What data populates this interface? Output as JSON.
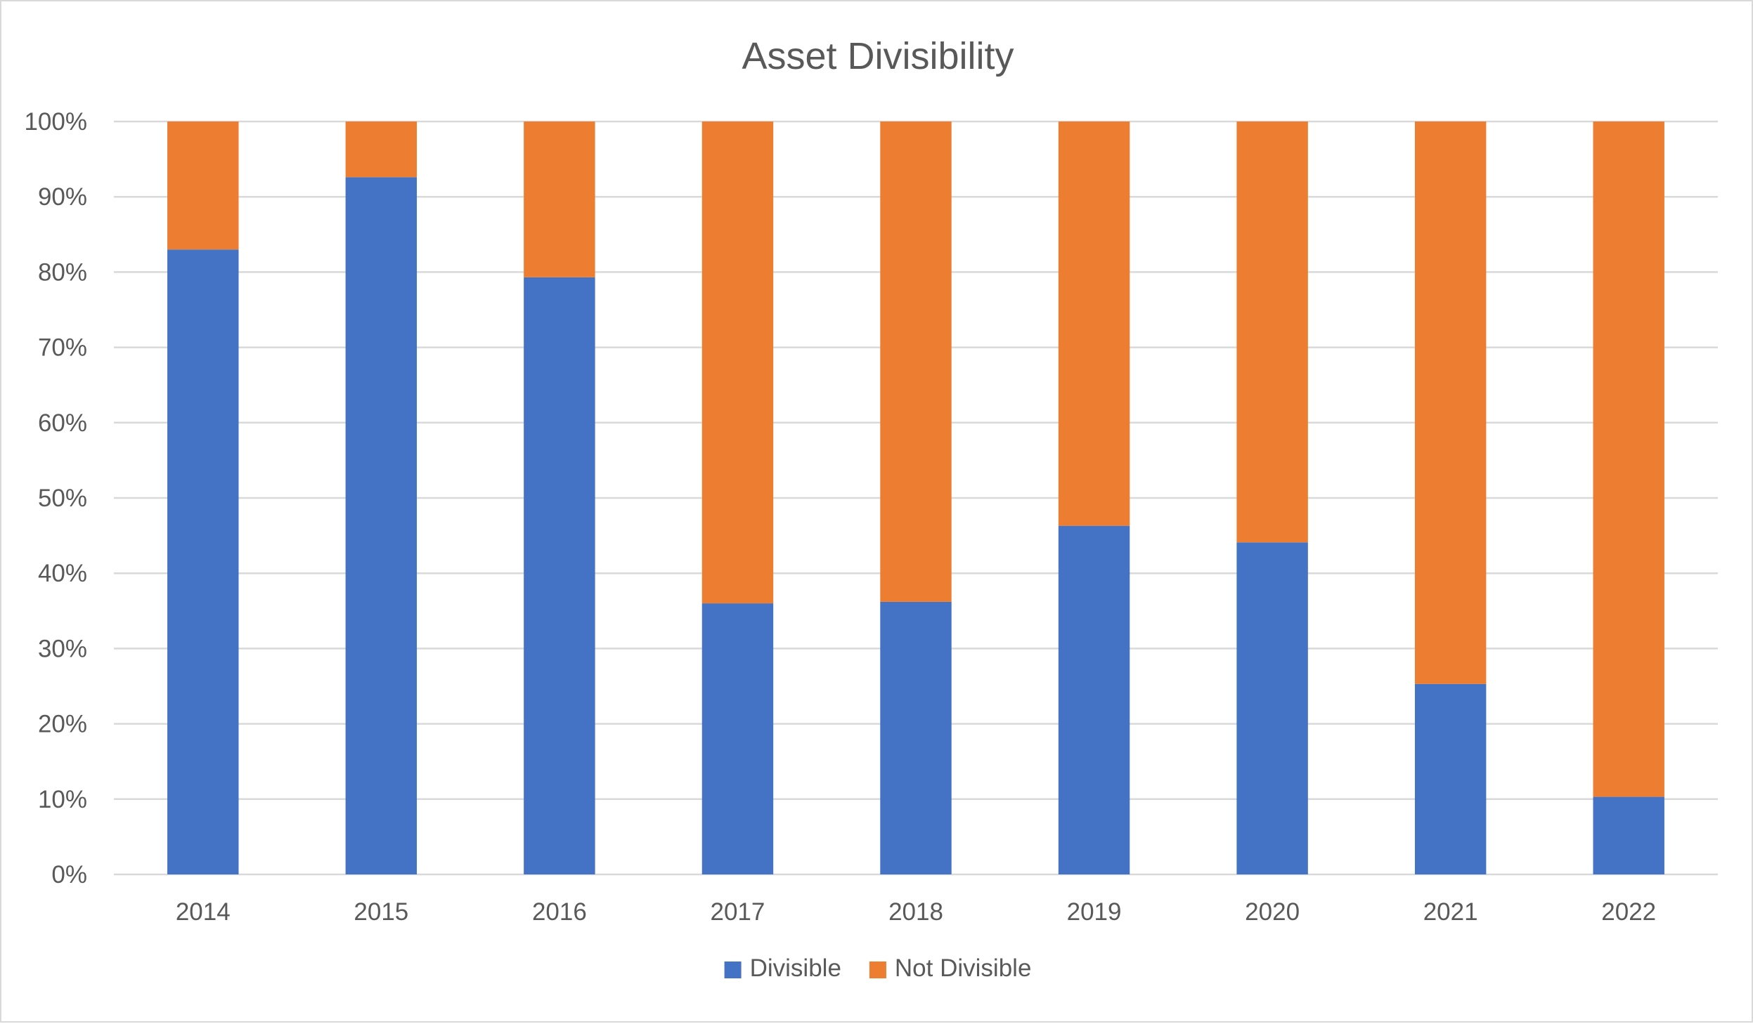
{
  "chart_data": {
    "type": "bar",
    "stacked": true,
    "percent_stacked": true,
    "title": "Asset Divisibility",
    "xlabel": "",
    "ylabel": "",
    "categories": [
      "2014",
      "2015",
      "2016",
      "2017",
      "2018",
      "2019",
      "2020",
      "2021",
      "2022"
    ],
    "series": [
      {
        "name": "Divisible",
        "color": "#4472c4",
        "values": [
          83,
          92.6,
          79.3,
          36,
          36.2,
          46.3,
          44.1,
          25.3,
          10.3
        ]
      },
      {
        "name": "Not Divisible",
        "color": "#ed7d31",
        "values": [
          17,
          7.4,
          20.7,
          64,
          63.8,
          53.7,
          55.9,
          74.7,
          89.7
        ]
      }
    ],
    "ylim": [
      0,
      100
    ],
    "yticks": [
      "0%",
      "10%",
      "20%",
      "30%",
      "40%",
      "50%",
      "60%",
      "70%",
      "80%",
      "90%",
      "100%"
    ],
    "grid": true,
    "legend_position": "bottom"
  }
}
